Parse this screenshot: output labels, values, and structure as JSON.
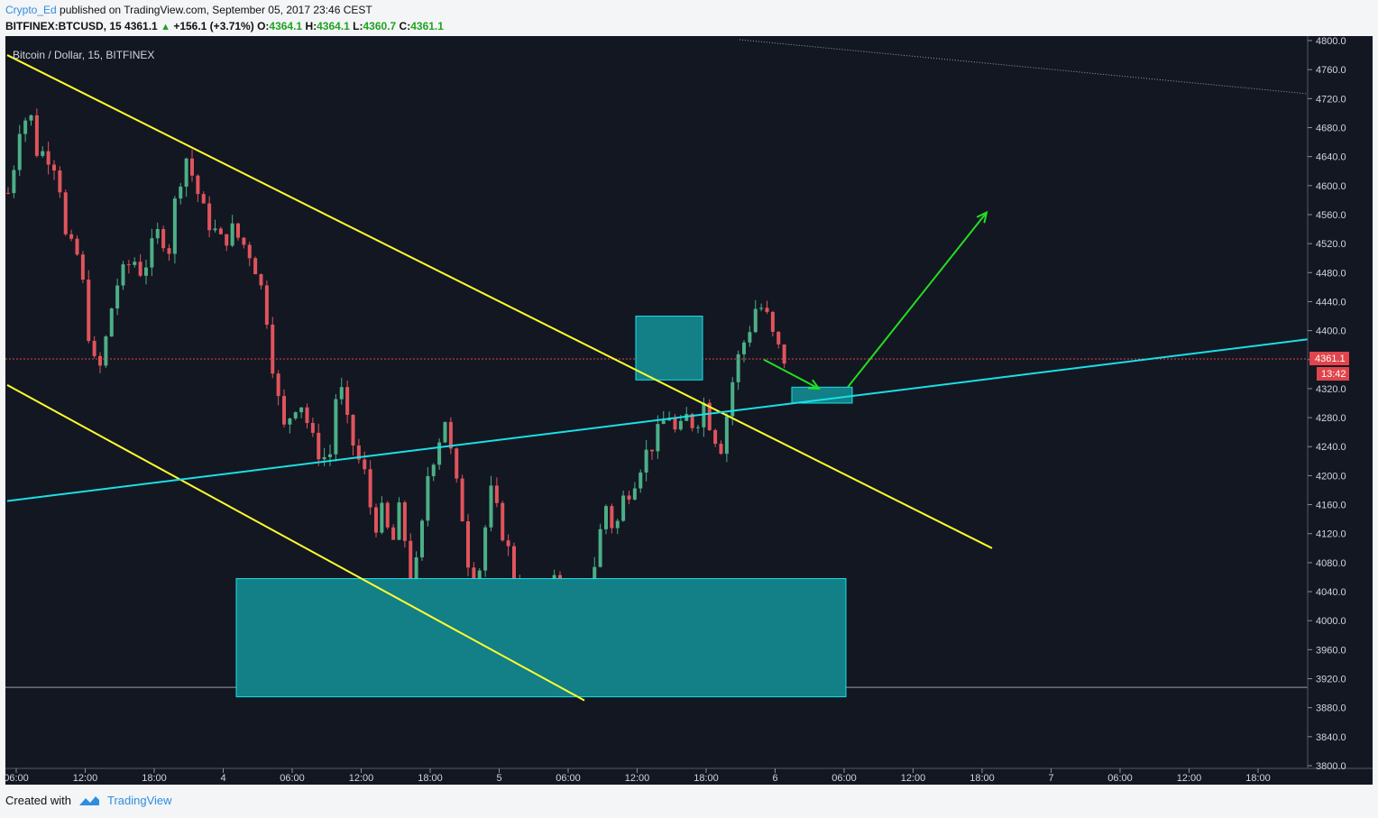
{
  "header": {
    "author": "Crypto_Ed",
    "published_text": "published on TradingView.com, September 05, 2017 23:46 CEST",
    "symbol": "BITFINEX:BTCUSD, 15",
    "last": "4361.1",
    "change": "+156.1 (+3.71%)",
    "o_label": "O:",
    "o": "4364.1",
    "h_label": "H:",
    "h": "4364.1",
    "l_label": "L:",
    "l": "4360.7",
    "c_label": "C:",
    "c": "4361.1"
  },
  "chart_legend": "Bitcoin / Dollar, 15, BITFINEX",
  "footer": {
    "created_with": "Created with",
    "brand": "TradingView"
  },
  "colors": {
    "background": "#131722",
    "up": "#4caf86",
    "down": "#e0545c",
    "channel": "#ffff2e",
    "trend": "#19e0e6",
    "zone": "#137f86",
    "arrow": "#22e022",
    "price_line": "#e0454b"
  },
  "chart_data": {
    "type": "candlestick",
    "title": "Bitcoin / Dollar, 15, BITFINEX",
    "ylim": [
      3800,
      4800
    ],
    "y_ticks": [
      "4800.0",
      "4760.0",
      "4720.0",
      "4680.0",
      "4640.0",
      "4600.0",
      "4560.0",
      "4520.0",
      "4480.0",
      "4440.0",
      "4400.0",
      "4360.0",
      "4320.0",
      "4280.0",
      "4240.0",
      "4200.0",
      "4160.0",
      "4120.0",
      "4080.0",
      "4040.0",
      "4000.0",
      "3960.0",
      "3920.0",
      "3880.0",
      "3840.0",
      "3800.0"
    ],
    "x_ticks": [
      "06:00",
      "12:00",
      "18:00",
      "4",
      "06:00",
      "12:00",
      "18:00",
      "5",
      "06:00",
      "12:00",
      "18:00",
      "6",
      "06:00",
      "12:00",
      "18:00",
      "7",
      "06:00",
      "12:00",
      "18:00"
    ],
    "current_price": "4361.1",
    "countdown": "13:42",
    "price_path": [
      [
        0,
        4590
      ],
      [
        0.3,
        4580
      ],
      [
        1,
        4680
      ],
      [
        2.5,
        4700
      ],
      [
        3,
        4650
      ],
      [
        5,
        4640
      ],
      [
        6,
        4590
      ],
      [
        6.5,
        4520
      ],
      [
        8,
        4500
      ],
      [
        9,
        4400
      ],
      [
        10,
        4330
      ],
      [
        11,
        4390
      ],
      [
        12,
        4460
      ],
      [
        14,
        4500
      ],
      [
        15,
        4480
      ],
      [
        17,
        4540
      ],
      [
        18,
        4510
      ],
      [
        18.5,
        4560
      ],
      [
        19,
        4600
      ],
      [
        20,
        4640
      ],
      [
        21,
        4600
      ],
      [
        22,
        4560
      ],
      [
        24,
        4520
      ],
      [
        25,
        4540
      ],
      [
        27,
        4510
      ],
      [
        28,
        4480
      ],
      [
        29,
        4420
      ],
      [
        30,
        4320
      ],
      [
        31,
        4260
      ],
      [
        32,
        4300
      ],
      [
        33,
        4300
      ],
      [
        34,
        4250
      ],
      [
        35,
        4230
      ],
      [
        36,
        4220
      ],
      [
        37,
        4340
      ],
      [
        38,
        4270
      ],
      [
        39,
        4230
      ],
      [
        40,
        4200
      ],
      [
        41,
        4130
      ],
      [
        42,
        4150
      ],
      [
        43,
        4100
      ],
      [
        44,
        4160
      ],
      [
        45,
        4060
      ],
      [
        46,
        4080
      ],
      [
        47,
        4200
      ],
      [
        48,
        4240
      ],
      [
        49,
        4280
      ],
      [
        50,
        4200
      ],
      [
        51,
        4140
      ],
      [
        52,
        4040
      ],
      [
        53,
        4080
      ],
      [
        54,
        4180
      ],
      [
        55,
        4140
      ],
      [
        56,
        4100
      ],
      [
        57,
        4040
      ],
      [
        58,
        4000
      ],
      [
        59,
        3950
      ],
      [
        60,
        3980
      ],
      [
        61,
        4060
      ],
      [
        62,
        4040
      ],
      [
        63,
        3960
      ],
      [
        64,
        3940
      ],
      [
        65,
        4020
      ],
      [
        66,
        4100
      ],
      [
        67,
        4160
      ],
      [
        68,
        4120
      ],
      [
        69,
        4170
      ],
      [
        70,
        4190
      ],
      [
        71,
        4220
      ],
      [
        72,
        4240
      ],
      [
        73,
        4260
      ],
      [
        74,
        4290
      ],
      [
        75,
        4250
      ],
      [
        76,
        4280
      ],
      [
        77,
        4270
      ],
      [
        78,
        4300
      ],
      [
        79,
        4260
      ],
      [
        80,
        4240
      ],
      [
        81,
        4320
      ],
      [
        82,
        4370
      ],
      [
        83,
        4400
      ],
      [
        84,
        4440
      ],
      [
        85,
        4420
      ],
      [
        86,
        4380
      ],
      [
        87,
        4361
      ]
    ],
    "annotations": [
      {
        "type": "channel_line",
        "from": [
          "4:18",
          "4780"
        ],
        "to": [
          "6:03",
          "4100"
        ]
      },
      {
        "type": "channel_line",
        "from": [
          "3:05",
          "4330"
        ],
        "to": [
          "5:07",
          "3890"
        ]
      },
      {
        "type": "trend_line",
        "from": [
          "3:05",
          "4163"
        ],
        "to": [
          "6:18+",
          "4385"
        ]
      },
      {
        "type": "zone",
        "x": [
          "4:22",
          "5:14:30"
        ],
        "y": [
          "3895",
          "4058"
        ]
      },
      {
        "type": "zone",
        "x": [
          "5:12",
          "5:15"
        ],
        "y": [
          "4330",
          "4420"
        ]
      },
      {
        "type": "zone",
        "x": [
          "5:23",
          "6:00"
        ],
        "y": [
          "4300",
          "4322"
        ]
      },
      {
        "type": "arrow",
        "from": [
          "5:21:30",
          "4360"
        ],
        "to": [
          "5:23:30",
          "4320"
        ]
      },
      {
        "type": "arrow",
        "from": [
          "6:00",
          "4320"
        ],
        "to": [
          "6:13",
          "4565"
        ]
      },
      {
        "type": "horizontal_line",
        "y": "3908"
      }
    ]
  }
}
